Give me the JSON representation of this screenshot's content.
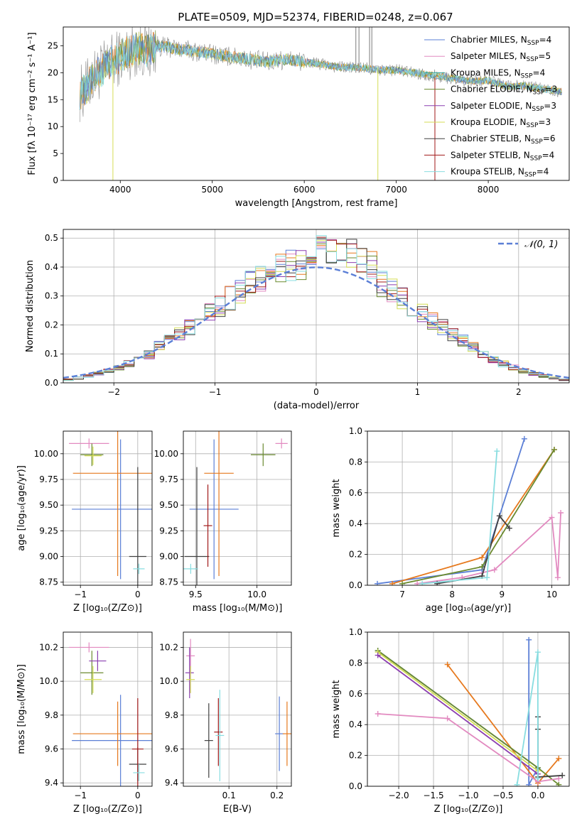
{
  "figure_title": "PLATE=0509, MJD=52374, FIBERID=0248, z=0.067",
  "colors": {
    "Chabrier MILES": "#5b7fd6",
    "Salpeter MILES": "#e28ac0",
    "Kroupa MILES": "#2ea49a",
    "Chabrier ELODIE": "#6a8a2f",
    "Salpeter ELODIE": "#8b3fb0",
    "Kroupa ELODIE": "#d4dd55",
    "Chabrier STELIB": "#404040",
    "Salpeter STELIB": "#a01818",
    "Kroupa STELIB": "#88dde0",
    "orange": "#e6791e",
    "data": "#808080",
    "normal": "#5b7fd6"
  },
  "chart_data": [
    {
      "id": "spectrum",
      "type": "line",
      "title": "PLATE=0509, MJD=52374, FIBERID=0248, z=0.067",
      "xlabel": "wavelength [Angstrom, rest frame]",
      "ylabel": "Flux [fλ 10⁻¹⁷ erg cm⁻² s⁻¹ A⁻¹]",
      "xlim": [
        3380,
        8880
      ],
      "ylim": [
        0,
        28.5
      ],
      "xticks": [
        4000,
        5000,
        6000,
        7000,
        8000
      ],
      "yticks": [
        0,
        5,
        10,
        15,
        20,
        25
      ],
      "legend_position": "top-right",
      "legend": [
        {
          "label": "Chabrier MILES, N",
          "sub": "SSP",
          "val": "=4",
          "color_key": "Chabrier MILES"
        },
        {
          "label": "Salpeter MILES, N",
          "sub": "SSP",
          "val": "=5",
          "color_key": "Salpeter MILES"
        },
        {
          "label": "Kroupa MILES, N",
          "sub": "SSP",
          "val": "=4",
          "color_key": "Kroupa MILES"
        },
        {
          "label": "Chabrier ELODIE, N",
          "sub": "SSP",
          "val": "=3",
          "color_key": "Chabrier ELODIE"
        },
        {
          "label": "Salpeter ELODIE, N",
          "sub": "SSP",
          "val": "=3",
          "color_key": "Salpeter ELODIE"
        },
        {
          "label": "Kroupa ELODIE, N",
          "sub": "SSP",
          "val": "=3",
          "color_key": "Kroupa ELODIE"
        },
        {
          "label": "Chabrier STELIB, N",
          "sub": "SSP",
          "val": "=6",
          "color_key": "Chabrier STELIB"
        },
        {
          "label": "Salpeter STELIB, N",
          "sub": "SSP",
          "val": "=4",
          "color_key": "Salpeter STELIB"
        },
        {
          "label": "Kroupa STELIB, N",
          "sub": "SSP",
          "val": "=4",
          "color_key": "Kroupa STELIB"
        }
      ],
      "trend": [
        [
          3550,
          16
        ],
        [
          3620,
          17
        ],
        [
          3700,
          19
        ],
        [
          3800,
          20.5
        ],
        [
          3900,
          22
        ],
        [
          4000,
          23
        ],
        [
          4100,
          24
        ],
        [
          4200,
          24.5
        ],
        [
          4300,
          24
        ],
        [
          4400,
          25
        ],
        [
          4600,
          24.5
        ],
        [
          4800,
          24
        ],
        [
          5000,
          23.5
        ],
        [
          5200,
          23
        ],
        [
          5400,
          22.5
        ],
        [
          5600,
          22
        ],
        [
          5800,
          22.5
        ],
        [
          6000,
          22
        ],
        [
          6200,
          21.5
        ],
        [
          6400,
          21
        ],
        [
          6600,
          21
        ],
        [
          6800,
          20.5
        ],
        [
          7000,
          20.5
        ],
        [
          7200,
          20
        ],
        [
          7400,
          19.5
        ],
        [
          7600,
          19
        ],
        [
          7800,
          18.5
        ],
        [
          8000,
          18.5
        ],
        [
          8200,
          17.5
        ],
        [
          8400,
          17.5
        ],
        [
          8600,
          17
        ],
        [
          8800,
          16.5
        ]
      ]
    },
    {
      "id": "residuals",
      "type": "step-histogram",
      "xlabel": "(data-model)/error",
      "ylabel": "Normed distribution",
      "xlim": [
        -2.5,
        2.5
      ],
      "ylim": [
        0,
        0.53
      ],
      "xticks": [
        -2,
        -1,
        0,
        1,
        2
      ],
      "yticks": [
        0.0,
        0.1,
        0.2,
        0.3,
        0.4,
        0.5
      ],
      "grid": true,
      "legend_position": "top-right",
      "legend": [
        {
          "label": "𝒩(0, 1)",
          "style": "dashed",
          "color_key": "normal"
        }
      ],
      "bin_width": 0.1
    },
    {
      "id": "age_vs_Z",
      "type": "errorbar",
      "xlabel": "Z [log₁₀(Z/Z⊙)]",
      "ylabel": "age  [log₁₀(age/yr)]",
      "xlim": [
        -1.3,
        0.25
      ],
      "ylim": [
        8.72,
        10.22
      ],
      "xticks": [
        -1,
        0
      ],
      "yticks": [
        8.75,
        9.0,
        9.25,
        9.5,
        9.75,
        10.0
      ],
      "grid": true,
      "points": [
        {
          "x": -0.3,
          "y": 9.46,
          "xerr": 0.85,
          "yerr": 0.68,
          "color_key": "Chabrier MILES"
        },
        {
          "x": -0.35,
          "y": 9.81,
          "xerr": 0.78,
          "yerr": 1.0,
          "color_key": "orange"
        },
        {
          "x": 0.0,
          "y": 9.0,
          "xerr": 0.15,
          "yerr": 0.87,
          "color_key": "Chabrier STELIB"
        },
        {
          "x": -0.85,
          "y": 10.1,
          "xerr": 0.35,
          "yerr": 0.0,
          "color_key": "Salpeter MILES"
        },
        {
          "x": -0.8,
          "y": 9.99,
          "xerr": 0.2,
          "yerr": 0.11,
          "color_key": "Chabrier ELODIE"
        },
        {
          "x": -0.78,
          "y": 9.98,
          "xerr": 0.15,
          "yerr": 0.09,
          "color_key": "Kroupa ELODIE"
        },
        {
          "x": 0.02,
          "y": 8.88,
          "xerr": 0.1,
          "yerr": 0.05,
          "color_key": "Kroupa STELIB"
        }
      ]
    },
    {
      "id": "age_vs_mass",
      "type": "errorbar",
      "xlabel": "mass [log₁₀(M/M⊙)]",
      "ylabel": "",
      "xlim": [
        9.4,
        10.28
      ],
      "ylim": [
        8.72,
        10.22
      ],
      "xticks": [
        9.5,
        10.0
      ],
      "yticks": [
        8.75,
        9.0,
        9.25,
        9.5,
        9.75,
        10.0
      ],
      "grid": true,
      "points": [
        {
          "x": 9.65,
          "y": 9.46,
          "xerr": 0.2,
          "yerr": 0.68,
          "color_key": "Chabrier MILES"
        },
        {
          "x": 9.69,
          "y": 9.81,
          "xerr": 0.12,
          "yerr": 1.0,
          "color_key": "orange"
        },
        {
          "x": 9.51,
          "y": 9.0,
          "xerr": 0.1,
          "yerr": 0.87,
          "color_key": "Chabrier STELIB"
        },
        {
          "x": 9.6,
          "y": 9.3,
          "xerr": 0.0,
          "yerr": 0.4,
          "color_key": "Salpeter STELIB"
        },
        {
          "x": 10.2,
          "y": 10.1,
          "xerr": 0.05,
          "yerr": 0.0,
          "color_key": "Salpeter MILES"
        },
        {
          "x": 10.05,
          "y": 9.99,
          "xerr": 0.1,
          "yerr": 0.11,
          "color_key": "Chabrier ELODIE"
        },
        {
          "x": 9.46,
          "y": 8.88,
          "xerr": 0.06,
          "yerr": 0.0,
          "color_key": "Kroupa STELIB"
        }
      ]
    },
    {
      "id": "weight_vs_age",
      "type": "line",
      "xlabel": "age  [log₁₀(age/yr)]",
      "ylabel": "mass weight",
      "xlim": [
        6.3,
        10.35
      ],
      "ylim": [
        0,
        1.0
      ],
      "xticks": [
        7,
        8,
        9,
        10
      ],
      "yticks": [
        0.0,
        0.2,
        0.4,
        0.6,
        0.8,
        1.0
      ],
      "grid": true,
      "series": [
        {
          "color_key": "Chabrier MILES",
          "x": [
            6.5,
            8.6,
            9.45
          ],
          "y": [
            0.01,
            0.1,
            0.95
          ]
        },
        {
          "color_key": "orange",
          "x": [
            6.8,
            8.6,
            10.05
          ],
          "y": [
            0.01,
            0.18,
            0.88
          ]
        },
        {
          "color_key": "Chabrier ELODIE",
          "x": [
            7.0,
            8.6,
            10.05
          ],
          "y": [
            0.01,
            0.12,
            0.88
          ]
        },
        {
          "color_key": "Salpeter MILES",
          "x": [
            7.3,
            8.2,
            8.85,
            10.0,
            10.12,
            10.18
          ],
          "y": [
            0.01,
            0.05,
            0.1,
            0.44,
            0.05,
            0.47
          ]
        },
        {
          "color_key": "Chabrier STELIB",
          "x": [
            7.7,
            8.6,
            8.95,
            9.15
          ],
          "y": [
            0.01,
            0.06,
            0.45,
            0.37
          ]
        },
        {
          "color_key": "Kroupa STELIB",
          "x": [
            7.4,
            8.7,
            8.9
          ],
          "y": [
            0.01,
            0.05,
            0.87
          ]
        }
      ]
    },
    {
      "id": "mass_vs_Z",
      "type": "errorbar",
      "xlabel": "Z [log₁₀(Z/Z⊙)]",
      "ylabel": "mass [log₁₀(M/M⊙)]",
      "xlim": [
        -1.3,
        0.25
      ],
      "ylim": [
        9.38,
        10.29
      ],
      "xticks": [
        -1,
        0
      ],
      "yticks": [
        9.4,
        9.6,
        9.8,
        10.0,
        10.2
      ],
      "grid": true,
      "points": [
        {
          "x": -0.3,
          "y": 9.65,
          "xerr": 0.85,
          "yerr": 0.27,
          "color_key": "Chabrier MILES"
        },
        {
          "x": -0.35,
          "y": 9.69,
          "xerr": 0.78,
          "yerr": 0.19,
          "color_key": "orange"
        },
        {
          "x": 0.0,
          "y": 9.51,
          "xerr": 0.15,
          "yerr": 0.1,
          "color_key": "Chabrier STELIB"
        },
        {
          "x": 0.0,
          "y": 9.6,
          "xerr": 0.1,
          "yerr": 0.3,
          "color_key": "Salpeter STELIB"
        },
        {
          "x": -0.85,
          "y": 10.2,
          "xerr": 0.35,
          "yerr": 0.0,
          "color_key": "Salpeter MILES"
        },
        {
          "x": -0.8,
          "y": 10.05,
          "xerr": 0.2,
          "yerr": 0.13,
          "color_key": "Chabrier ELODIE"
        },
        {
          "x": -0.78,
          "y": 10.01,
          "xerr": 0.15,
          "yerr": 0.08,
          "color_key": "Kroupa ELODIE"
        },
        {
          "x": -0.7,
          "y": 10.12,
          "xerr": 0.15,
          "yerr": 0.06,
          "color_key": "Salpeter ELODIE"
        },
        {
          "x": 0.02,
          "y": 9.46,
          "xerr": 0.1,
          "yerr": 0.05,
          "color_key": "Kroupa STELIB"
        }
      ]
    },
    {
      "id": "mass_vs_EBV",
      "type": "errorbar",
      "xlabel": "E(B-V)",
      "ylabel": "",
      "xlim": [
        0.005,
        0.23
      ],
      "ylim": [
        9.38,
        10.29
      ],
      "xticks": [
        0.1,
        0.2
      ],
      "yticks": [
        9.4,
        9.6,
        9.8,
        10.0,
        10.2
      ],
      "grid": true,
      "points": [
        {
          "x": 0.02,
          "y": 10.15,
          "xerr": 0.0,
          "yerr": 0.1,
          "color_key": "Salpeter MILES"
        },
        {
          "x": 0.018,
          "y": 10.05,
          "xerr": 0.0,
          "yerr": 0.15,
          "color_key": "Salpeter ELODIE"
        },
        {
          "x": 0.02,
          "y": 10.01,
          "xerr": 0.0,
          "yerr": 0.08,
          "color_key": "Kroupa ELODIE"
        },
        {
          "x": 0.058,
          "y": 9.65,
          "xerr": 0.0,
          "yerr": 0.22,
          "color_key": "Chabrier STELIB"
        },
        {
          "x": 0.078,
          "y": 9.7,
          "xerr": 0.0,
          "yerr": 0.2,
          "color_key": "Salpeter STELIB"
        },
        {
          "x": 0.081,
          "y": 9.68,
          "xerr": 0.0,
          "yerr": 0.27,
          "color_key": "Kroupa STELIB"
        },
        {
          "x": 0.205,
          "y": 9.69,
          "xerr": 0.0,
          "yerr": 0.22,
          "color_key": "Chabrier MILES"
        },
        {
          "x": 0.221,
          "y": 9.69,
          "xerr": 0.0,
          "yerr": 0.19,
          "color_key": "orange"
        }
      ]
    },
    {
      "id": "weight_vs_Z",
      "type": "line",
      "xlabel": "Z [log₁₀(Z/Z⊙)]",
      "ylabel": "mass weight",
      "xlim": [
        -2.45,
        0.45
      ],
      "ylim": [
        0,
        1.0
      ],
      "xticks": [
        -2.0,
        -1.5,
        -1.0,
        -0.5,
        0.0
      ],
      "yticks": [
        0.0,
        0.2,
        0.4,
        0.6,
        0.8,
        1.0
      ],
      "grid": true,
      "series": [
        {
          "color_key": "Chabrier MILES",
          "x": [
            -2.3,
            0.0,
            -0.13,
            -0.13
          ],
          "y": [
            0.88,
            0.12,
            0.01,
            0.95
          ]
        },
        {
          "color_key": "orange",
          "x": [
            -1.3,
            0.0,
            0.3
          ],
          "y": [
            0.79,
            0.02,
            0.18
          ]
        },
        {
          "color_key": "Chabrier ELODIE",
          "x": [
            -2.3,
            0.0,
            0.3
          ],
          "y": [
            0.88,
            0.12,
            0.01
          ]
        },
        {
          "color_key": "Kroupa ELODIE",
          "x": [
            -2.3,
            0.0
          ],
          "y": [
            0.87,
            0.1
          ]
        },
        {
          "color_key": "Salpeter MILES",
          "x": [
            -2.3,
            -1.3,
            0.0,
            0.3
          ],
          "y": [
            0.47,
            0.44,
            0.03,
            0.05
          ]
        },
        {
          "color_key": "Salpeter ELODIE",
          "x": [
            -2.3,
            0.0
          ],
          "y": [
            0.85,
            0.08
          ]
        },
        {
          "color_key": "Chabrier STELIB",
          "x": [
            0.0,
            0.0,
            0.0,
            0.35
          ],
          "y": [
            0.45,
            0.37,
            0.06,
            0.07
          ]
        },
        {
          "color_key": "Kroupa STELIB",
          "x": [
            -0.3,
            -0.3,
            0.0,
            0.0
          ],
          "y": [
            0.01,
            0.01,
            0.87,
            0.05
          ]
        }
      ]
    }
  ]
}
